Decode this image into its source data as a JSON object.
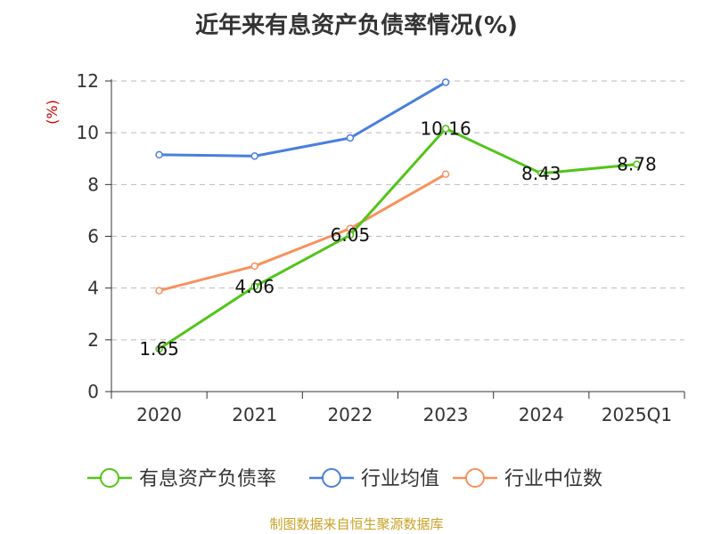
{
  "chart_data": {
    "type": "line",
    "title": "近年来有息资产负债率情况(%)",
    "ylabel": "(%)",
    "ylabel_color": "#cc0000",
    "categories": [
      "2020",
      "2021",
      "2022",
      "2023",
      "2024",
      "2025Q1"
    ],
    "ylim": [
      0,
      12
    ],
    "yticks": [
      "0",
      "2",
      "4",
      "6",
      "8",
      "10",
      "12"
    ],
    "grid": true,
    "legend_position": "bottom",
    "series": [
      {
        "name": "有息资产负债率",
        "color": "#52c41a",
        "values": [
          1.65,
          4.06,
          6.05,
          10.16,
          8.43,
          8.78
        ],
        "labels": [
          "1.65",
          "4.06",
          "6.05",
          "10.16",
          "8.43",
          "8.78"
        ]
      },
      {
        "name": "行业均值",
        "color": "#4a7fdc",
        "values": [
          9.15,
          9.1,
          9.8,
          11.95,
          null,
          null
        ]
      },
      {
        "name": "行业中位数",
        "color": "#f7915d",
        "values": [
          3.9,
          4.85,
          6.3,
          8.4,
          null,
          null
        ]
      }
    ]
  },
  "source_note": "制图数据来自恒生聚源数据库"
}
